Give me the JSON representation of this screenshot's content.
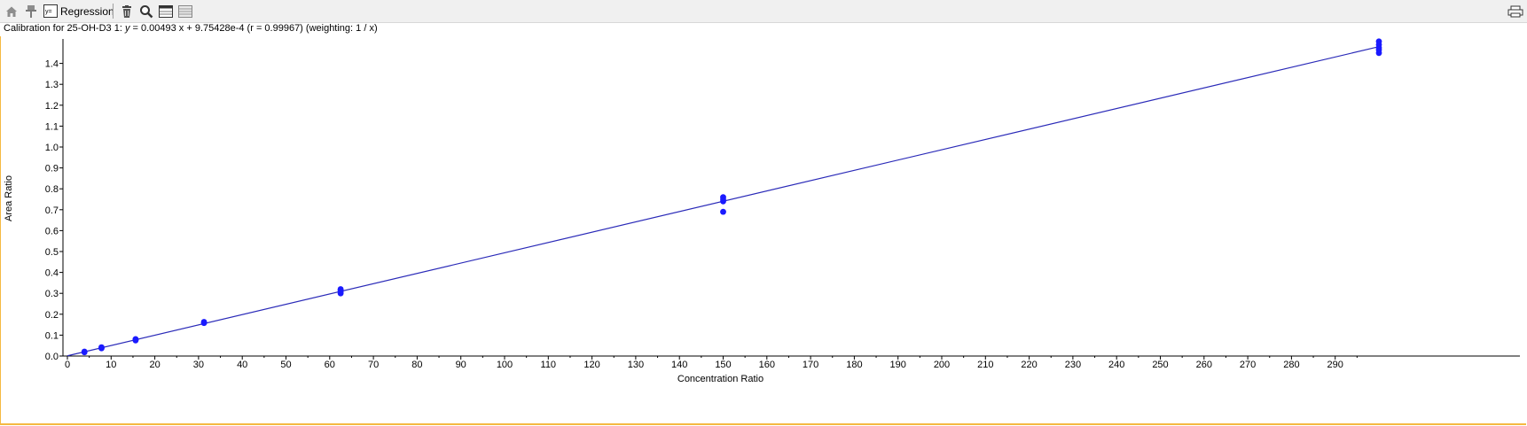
{
  "toolbar": {
    "items": [
      {
        "name": "home-icon"
      },
      {
        "name": "pin-icon"
      },
      {
        "name": "regression-icon",
        "icon_text": "y=",
        "label": "Regression"
      },
      {
        "name": "delete-icon"
      },
      {
        "name": "zoom-icon"
      },
      {
        "name": "table-icon"
      },
      {
        "name": "list-icon"
      }
    ],
    "right_icon": "print-icon"
  },
  "calibration": {
    "prefix": "Calibration for 25-OH-D3 1: ",
    "y_var": "y",
    "equation": " = 0.00493 x + 9.75428e-4 (r = 0.99967)  (weighting: 1 / x)"
  },
  "colors": {
    "points": "#1a1aff",
    "line": "#2a2ab8",
    "panel_border": "#f5b942",
    "toolbar_bg": "#f0f0f0"
  },
  "chart_data": {
    "type": "scatter",
    "xlabel": "Concentration Ratio",
    "ylabel": "Area Ratio",
    "xlim": [
      0,
      300
    ],
    "ylim": [
      0,
      1.5
    ],
    "xticks": [
      0,
      10,
      20,
      30,
      40,
      50,
      60,
      70,
      80,
      90,
      100,
      110,
      120,
      130,
      140,
      150,
      160,
      170,
      180,
      190,
      200,
      210,
      220,
      230,
      240,
      250,
      260,
      270,
      280,
      290
    ],
    "yticks": [
      0.0,
      0.1,
      0.2,
      0.3,
      0.4,
      0.5,
      0.6,
      0.7,
      0.8,
      0.9,
      1.0,
      1.1,
      1.2,
      1.3,
      1.4
    ],
    "regression": {
      "slope": 0.00493,
      "intercept": 0.000975428,
      "x_range": [
        0,
        300
      ]
    },
    "series": [
      {
        "x": [
          3.9,
          3.9,
          7.8,
          7.8,
          7.8,
          15.6,
          15.6,
          15.6,
          31.25,
          31.25,
          62.5,
          62.5,
          62.5,
          62.5,
          150,
          150,
          150,
          150,
          300,
          300,
          300,
          300,
          300
        ],
        "y": [
          0.018,
          0.021,
          0.037,
          0.04,
          0.042,
          0.075,
          0.078,
          0.081,
          0.158,
          0.163,
          0.3,
          0.308,
          0.315,
          0.32,
          0.69,
          0.74,
          0.75,
          0.76,
          1.45,
          1.465,
          1.475,
          1.49,
          1.505
        ]
      }
    ]
  }
}
